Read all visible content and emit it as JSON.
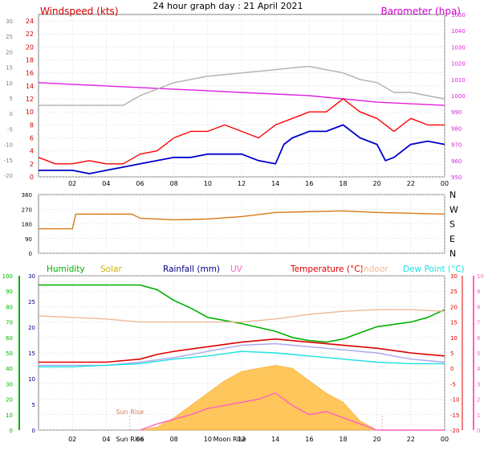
{
  "title": "24 hour graph day : 21 April 2021",
  "colors": {
    "wind_axis": "#d00000",
    "baro": "#e020e0",
    "gust": "#ff0000",
    "wind": "#0000cc",
    "gray": "#b0b0b0",
    "dir": "#d87818",
    "hum": "#00b000",
    "solar_fill": "#ffc04a",
    "solar_text": "#c8b400",
    "rain": "#000080",
    "uv": "#ff60c0",
    "temp": "#e00000",
    "indoor": "#f0b898",
    "dew": "#20e0e0",
    "feels": "#a8a8f0",
    "grid": "#d8d8d8"
  },
  "chart_data": [
    {
      "type": "line",
      "panel": "wind",
      "left_axis_label": "Windspeed (kts)",
      "right_axis_label": "Barometer (hpa)",
      "x_ticks": [
        "02",
        "04",
        "06",
        "08",
        "10",
        "12",
        "14",
        "16",
        "18",
        "20",
        "22",
        "00"
      ],
      "y_left_ticks": [
        "24",
        "22",
        "20",
        "18",
        "16",
        "14",
        "12",
        "10",
        "8",
        "6",
        "4",
        "2",
        "0"
      ],
      "y_left_range": [
        0,
        25
      ],
      "y_outer_ticks": [
        "30",
        "25",
        "20",
        "15",
        "10",
        "5",
        "0",
        "-5",
        "-10",
        "-15",
        "-20"
      ],
      "y_right_ticks": [
        "1050",
        "1040",
        "1030",
        "1020",
        "1010",
        "1000",
        "990",
        "980",
        "970",
        "960",
        "950"
      ],
      "y_right_range": [
        950,
        1050
      ],
      "series": [
        {
          "key": "baro",
          "x": [
            0,
            2,
            4,
            6,
            8,
            10,
            12,
            14,
            16,
            18,
            20,
            22,
            24
          ],
          "values": [
            1008,
            1007,
            1006,
            1005,
            1004,
            1003,
            1002,
            1001,
            1000,
            998,
            996,
            995,
            994
          ]
        },
        {
          "key": "gray",
          "x": [
            0,
            2,
            4,
            5,
            6,
            7,
            8,
            10,
            12,
            14,
            15,
            16,
            17,
            18,
            19,
            20,
            21,
            22,
            23,
            24
          ],
          "values": [
            11,
            11,
            11,
            11,
            12.5,
            13.5,
            14.5,
            15.5,
            16,
            16.5,
            16.8,
            17,
            16.5,
            16,
            15,
            14.5,
            13,
            13,
            12.5,
            12
          ]
        },
        {
          "key": "wind",
          "x": [
            0,
            1,
            2,
            3,
            4,
            5,
            6,
            7,
            8,
            9,
            10,
            11,
            12,
            13,
            14,
            14.5,
            15,
            16,
            17,
            18,
            19,
            20,
            20.5,
            21,
            22,
            23,
            24
          ],
          "values": [
            1,
            1,
            1,
            0.5,
            1,
            1.5,
            2,
            2.5,
            3,
            3,
            3.5,
            3.5,
            3.5,
            2.5,
            2,
            5,
            6,
            7,
            7,
            8,
            6,
            5,
            2.5,
            3,
            5,
            5.5,
            5
          ]
        },
        {
          "key": "gust",
          "x": [
            0,
            1,
            2,
            3,
            4,
            5,
            6,
            7,
            8,
            9,
            10,
            11,
            12,
            13,
            14,
            15,
            16,
            17,
            18,
            19,
            20,
            21,
            22,
            23,
            24
          ],
          "values": [
            3,
            2,
            2,
            2.5,
            2,
            2,
            3.5,
            4,
            6,
            7,
            7,
            8,
            7,
            6,
            8,
            9,
            10,
            10,
            12,
            10,
            9,
            7,
            9,
            8,
            8
          ]
        }
      ]
    },
    {
      "type": "line",
      "panel": "direction",
      "x_ticks": [
        "02",
        "04",
        "06",
        "08",
        "10",
        "12",
        "14",
        "16",
        "18",
        "20",
        "22",
        "00"
      ],
      "y_left_ticks": [
        "360",
        "270",
        "180",
        "90",
        "0"
      ],
      "y_left_range": [
        0,
        360
      ],
      "y_right_ticks": [
        "N",
        "W",
        "S",
        "E",
        "N"
      ],
      "series": [
        {
          "key": "dir",
          "x": [
            0,
            2,
            2.2,
            5.5,
            6,
            8,
            10,
            12,
            14,
            16,
            18,
            20,
            22,
            24
          ],
          "values": [
            150,
            150,
            240,
            240,
            215,
            205,
            210,
            225,
            250,
            255,
            260,
            250,
            245,
            240
          ]
        }
      ]
    },
    {
      "type": "line",
      "panel": "temperature",
      "legend": [
        "Humidity",
        "Solar",
        "Rainfall (mm)",
        "UV",
        "Temperature (°C)",
        "Indoor",
        "Dew Point (°C)"
      ],
      "x_ticks": [
        "02",
        "04",
        "06",
        "08",
        "10",
        "12",
        "14",
        "16",
        "18",
        "20",
        "22",
        "00"
      ],
      "annotations": [
        "Sun Rise",
        "Moon Rise"
      ],
      "y_hum_ticks": [
        "100",
        "90",
        "80",
        "70",
        "60",
        "50",
        "40",
        "30",
        "20",
        "10",
        "0"
      ],
      "y_rain_ticks": [
        "30",
        "25",
        "20",
        "15",
        "10",
        "5",
        "0"
      ],
      "y_temp_ticks": [
        "30",
        "25",
        "20",
        "15",
        "10",
        "5",
        "0",
        "-5",
        "-10",
        "-15",
        "-20"
      ],
      "y_temp_range": [
        -20,
        30
      ],
      "y_uv_ticks": [
        "10",
        "9",
        "8",
        "7",
        "6",
        "5",
        "4",
        "3",
        "2",
        "1",
        "0"
      ],
      "series": [
        {
          "key": "hum",
          "x": [
            0,
            2,
            4,
            6,
            7,
            8,
            9,
            10,
            12,
            14,
            15,
            16,
            17,
            18,
            19,
            20,
            22,
            23,
            24
          ],
          "values": [
            94,
            94,
            94,
            94,
            91,
            84,
            79,
            73,
            69,
            64,
            60,
            58,
            57,
            59,
            63,
            67,
            70,
            73,
            78
          ]
        },
        {
          "key": "indoor",
          "x": [
            0,
            2,
            4,
            6,
            8,
            10,
            12,
            14,
            16,
            18,
            20,
            22,
            24
          ],
          "values": [
            17,
            16.5,
            16,
            15,
            15,
            15,
            15,
            16,
            17.5,
            18.5,
            19,
            19,
            18.5
          ]
        },
        {
          "key": "temp",
          "x": [
            0,
            2,
            4,
            6,
            7,
            8,
            10,
            12,
            14,
            16,
            18,
            20,
            22,
            24
          ],
          "values": [
            2,
            2,
            2,
            3,
            4.5,
            5.5,
            7,
            8.5,
            9.5,
            8.5,
            7.5,
            6.5,
            5,
            4
          ]
        },
        {
          "key": "feels",
          "x": [
            0,
            2,
            4,
            6,
            8,
            10,
            12,
            14,
            16,
            18,
            20,
            22,
            24
          ],
          "values": [
            1,
            1,
            1,
            2,
            3.5,
            5.5,
            7.5,
            8,
            7,
            6,
            5,
            3,
            2
          ]
        },
        {
          "key": "dew",
          "x": [
            0,
            2,
            4,
            6,
            8,
            10,
            12,
            14,
            16,
            18,
            20,
            22,
            24
          ],
          "values": [
            0.5,
            0.5,
            1,
            1.5,
            3,
            4,
            5.5,
            5,
            4,
            3,
            2,
            1.5,
            1.5
          ]
        },
        {
          "key": "solar",
          "x": [
            6,
            7,
            8,
            9,
            10,
            11,
            12,
            13,
            14,
            15,
            16,
            17,
            18,
            19,
            20,
            21,
            24
          ],
          "values": [
            -20,
            -19,
            -16,
            -12,
            -8,
            -4,
            -1,
            0,
            1,
            0,
            -4,
            -8,
            -11,
            -17,
            -20,
            -20,
            -20
          ]
        },
        {
          "key": "uv",
          "x": [
            6,
            7,
            8,
            9,
            10,
            11,
            12,
            13,
            14,
            15,
            16,
            17,
            18,
            19,
            20,
            24
          ],
          "values": [
            -20,
            -18,
            -16.5,
            -15,
            -13,
            -12,
            -11,
            -10,
            -8,
            -12,
            -15,
            -14,
            -16,
            -18,
            -20,
            -20
          ]
        }
      ]
    }
  ]
}
